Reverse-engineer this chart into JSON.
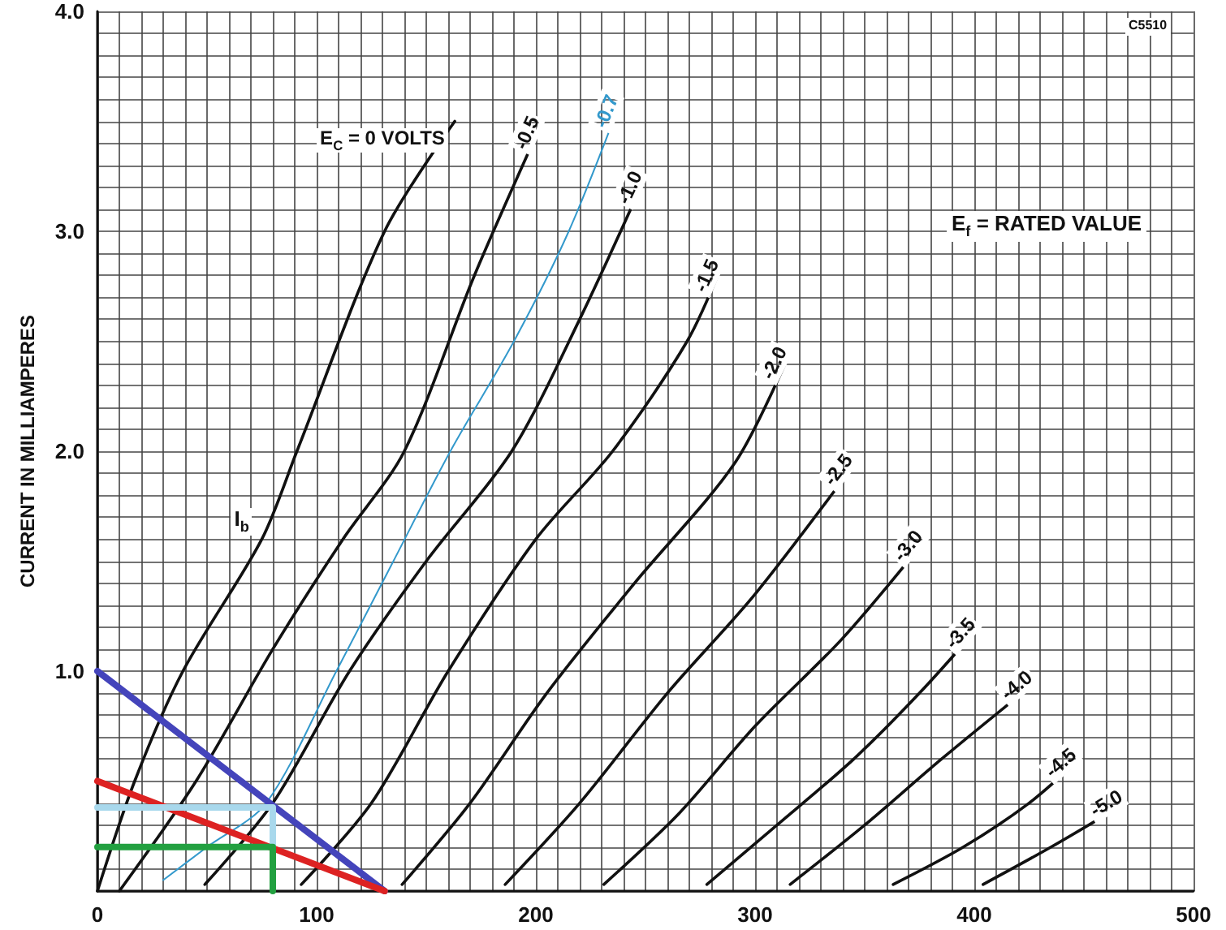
{
  "chart_data": {
    "type": "line",
    "ylabel": "CURRENT IN MILLIAMPERES",
    "xlim": [
      0,
      500
    ],
    "ylim": [
      0,
      4.0
    ],
    "xticks": [
      0,
      {
        "value": 10,
        "label": null
      },
      {
        "value": 20,
        "label": null
      },
      {
        "value": 30,
        "label": null
      },
      {
        "value": 40,
        "label": null
      },
      {
        "value": 50,
        "label": null
      },
      {
        "value": 60,
        "label": null
      },
      {
        "value": 70,
        "label": null
      },
      {
        "value": 80,
        "label": null
      },
      {
        "value": 90,
        "label": null
      },
      100,
      {
        "value": 110,
        "label": null
      },
      {
        "value": 120,
        "label": null
      },
      {
        "value": 130,
        "label": null
      },
      {
        "value": 140,
        "label": null
      },
      {
        "value": 150,
        "label": null
      },
      {
        "value": 160,
        "label": null
      },
      {
        "value": 170,
        "label": null
      },
      {
        "value": 180,
        "label": null
      },
      {
        "value": 190,
        "label": null
      },
      200,
      {
        "value": 210,
        "label": null
      },
      {
        "value": 220,
        "label": null
      },
      {
        "value": 230,
        "label": null
      },
      {
        "value": 240,
        "label": null
      },
      {
        "value": 250,
        "label": null
      },
      {
        "value": 260,
        "label": null
      },
      {
        "value": 270,
        "label": null
      },
      {
        "value": 280,
        "label": null
      },
      {
        "value": 290,
        "label": null
      },
      300,
      {
        "value": 310,
        "label": null
      },
      {
        "value": 320,
        "label": null
      },
      {
        "value": 330,
        "label": null
      },
      {
        "value": 340,
        "label": null
      },
      {
        "value": 350,
        "label": null
      },
      {
        "value": 360,
        "label": null
      },
      {
        "value": 370,
        "label": null
      },
      {
        "value": 380,
        "label": null
      },
      {
        "value": 390,
        "label": null
      },
      400,
      {
        "value": 410,
        "label": null
      },
      {
        "value": 420,
        "label": null
      },
      {
        "value": 430,
        "label": null
      },
      {
        "value": 440,
        "label": null
      },
      {
        "value": 450,
        "label": null
      },
      {
        "value": 460,
        "label": null
      },
      {
        "value": 470,
        "label": null
      },
      {
        "value": 480,
        "label": null
      },
      {
        "value": 490,
        "label": null
      },
      500
    ],
    "yticks": [
      {
        "value": 0,
        "label": null
      },
      {
        "value": 0.1,
        "label": null
      },
      {
        "value": 0.2,
        "label": null
      },
      {
        "value": 0.3,
        "label": null
      },
      {
        "value": 0.4,
        "label": null
      },
      {
        "value": 0.5,
        "label": null
      },
      {
        "value": 0.6,
        "label": null
      },
      {
        "value": 0.7,
        "label": null
      },
      {
        "value": 0.8,
        "label": null
      },
      {
        "value": 0.9,
        "label": null
      },
      {
        "value": 1.0,
        "label": "1.0"
      },
      {
        "value": 1.1,
        "label": null
      },
      {
        "value": 1.2,
        "label": null
      },
      {
        "value": 1.3,
        "label": null
      },
      {
        "value": 1.4,
        "label": null
      },
      {
        "value": 1.5,
        "label": null
      },
      {
        "value": 1.6,
        "label": null
      },
      {
        "value": 1.7,
        "label": null
      },
      {
        "value": 1.8,
        "label": null
      },
      {
        "value": 1.9,
        "label": null
      },
      {
        "value": 2.0,
        "label": "2.0"
      },
      {
        "value": 2.1,
        "label": null
      },
      {
        "value": 2.2,
        "label": null
      },
      {
        "value": 2.3,
        "label": null
      },
      {
        "value": 2.4,
        "label": null
      },
      {
        "value": 2.5,
        "label": null
      },
      {
        "value": 2.6,
        "label": null
      },
      {
        "value": 2.7,
        "label": null
      },
      {
        "value": 2.8,
        "label": null
      },
      {
        "value": 2.9,
        "label": null
      },
      {
        "value": 3.0,
        "label": "3.0"
      },
      {
        "value": 3.1,
        "label": null
      },
      {
        "value": 3.2,
        "label": null
      },
      {
        "value": 3.3,
        "label": null
      },
      {
        "value": 3.4,
        "label": null
      },
      {
        "value": 3.5,
        "label": null
      },
      {
        "value": 3.6,
        "label": null
      },
      {
        "value": 3.7,
        "label": null
      },
      {
        "value": 3.8,
        "label": null
      },
      {
        "value": 3.9,
        "label": null
      },
      {
        "value": 4.0,
        "label": "4.0"
      }
    ],
    "grid": true,
    "legend": false,
    "marker": "none",
    "line_style": "solid",
    "series": [
      {
        "name": "E$_{C}$ = 0 VOLTS",
        "color": "#111111",
        "x": [
          0,
          17,
          39,
          75,
          91,
          131,
          163
        ],
        "values": [
          0,
          0.5,
          1.0,
          1.6,
          2.0,
          3.0,
          3.5
        ]
      },
      {
        "name": "-0.5",
        "color": "#111111",
        "x": [
          10,
          45,
          80,
          112,
          140,
          172,
          203
        ],
        "values": [
          0,
          0.5,
          1.1,
          1.6,
          2.0,
          2.8,
          3.5
        ]
      },
      {
        "name": "-0.7",
        "color": "#3399cc",
        "x": [
          30,
          50,
          77,
          109,
          135,
          161,
          190,
          215,
          239
        ],
        "values": [
          0.05,
          0.2,
          0.4,
          1.0,
          1.5,
          2.0,
          2.5,
          3.0,
          3.6
        ]
      },
      {
        "name": "-1.0",
        "color": "#111111",
        "x": [
          49,
          80,
          115,
          150,
          189,
          220,
          250
        ],
        "values": [
          0.03,
          0.4,
          1.0,
          1.5,
          2.0,
          2.6,
          3.25
        ]
      },
      {
        "name": "-1.5",
        "color": "#111111",
        "x": [
          93,
          125,
          160,
          200,
          235,
          269,
          285
        ],
        "values": [
          0.03,
          0.4,
          1.0,
          1.6,
          2.0,
          2.5,
          2.85
        ]
      },
      {
        "name": "-2.0",
        "color": "#111111",
        "x": [
          139,
          170,
          205,
          245,
          291,
          316
        ],
        "values": [
          0.03,
          0.4,
          0.9,
          1.4,
          1.95,
          2.45
        ]
      },
      {
        "name": "-2.5",
        "color": "#111111",
        "x": [
          186,
          220,
          260,
          300,
          346
        ],
        "values": [
          0.03,
          0.4,
          0.9,
          1.35,
          1.95
        ]
      },
      {
        "name": "-3.0",
        "color": "#111111",
        "x": [
          231,
          265,
          300,
          340,
          378
        ],
        "values": [
          0.03,
          0.35,
          0.75,
          1.15,
          1.6
        ]
      },
      {
        "name": "-3.5",
        "color": "#111111",
        "x": [
          278,
          310,
          345,
          375,
          402
        ],
        "values": [
          0.03,
          0.3,
          0.6,
          0.9,
          1.2
        ]
      },
      {
        "name": "-4.0",
        "color": "#111111",
        "x": [
          316,
          350,
          385,
          428
        ],
        "values": [
          0.03,
          0.3,
          0.6,
          0.95
        ]
      },
      {
        "name": "-4.5",
        "color": "#111111",
        "x": [
          363,
          395,
          425,
          448
        ],
        "values": [
          0.03,
          0.2,
          0.4,
          0.6
        ]
      },
      {
        "name": "-5.0",
        "color": "#111111",
        "x": [
          404,
          435,
          469
        ],
        "values": [
          0.03,
          0.2,
          0.4
        ]
      },
      {
        "color": "#4444bb",
        "x": [
          0,
          131
        ],
        "values": [
          1.0,
          0
        ]
      },
      {
        "color": "#dd2222",
        "x": [
          0,
          131
        ],
        "values": [
          0.5,
          0
        ]
      },
      {
        "color": "#a8d8ec",
        "x": [
          0,
          80,
          80
        ],
        "values": [
          0.38,
          0.38,
          0.2
        ]
      },
      {
        "color": "#22a040",
        "x": [
          0,
          80,
          80
        ],
        "values": [
          0.2,
          0.2,
          0
        ]
      }
    ],
    "annotations": [
      "E$_{f}$ = RATED VALUE",
      "C5510",
      {
        "text": "I$_{b}$",
        "x": 75,
        "y": 1.6
      }
    ]
  }
}
